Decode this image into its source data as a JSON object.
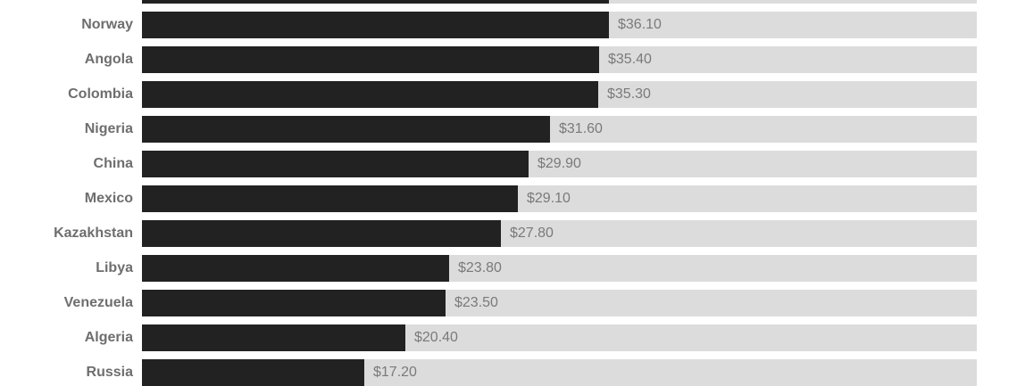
{
  "chart_data": {
    "type": "bar",
    "orientation": "horizontal",
    "categories": [
      "Norway",
      "Angola",
      "Colombia",
      "Nigeria",
      "China",
      "Mexico",
      "Kazakhstan",
      "Libya",
      "Venezuela",
      "Algeria",
      "Russia"
    ],
    "values": [
      36.1,
      35.4,
      35.3,
      31.6,
      29.9,
      29.1,
      27.8,
      23.8,
      23.5,
      20.4,
      17.2
    ],
    "value_labels": [
      "$36.10",
      "$35.40",
      "$35.30",
      "$31.60",
      "$29.90",
      "$29.10",
      "$27.80",
      "$23.80",
      "$23.50",
      "$20.40",
      "$17.20"
    ],
    "xlim": [
      0,
      64.6
    ],
    "cutoff_top_value": 36.1,
    "title": "",
    "xlabel": "",
    "ylabel": "",
    "grid": false,
    "colors": {
      "bar": "#222222",
      "track": "#dcdcdc",
      "label": "#6e6e6e",
      "value": "#7a7a7a"
    }
  }
}
